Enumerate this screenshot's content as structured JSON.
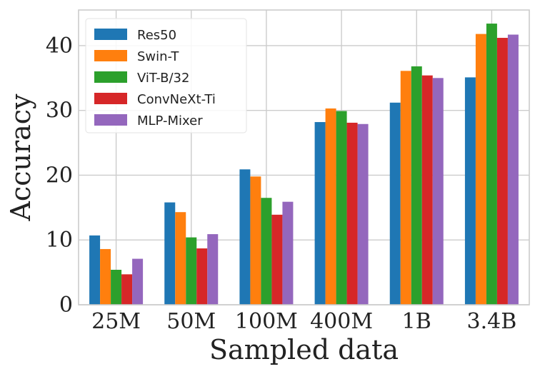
{
  "chart_data": {
    "type": "bar",
    "title": "",
    "xlabel": "Sampled data",
    "ylabel": "Accuracy",
    "categories": [
      "25M",
      "50M",
      "100M",
      "400M",
      "1B",
      "3.4B"
    ],
    "ylim": [
      0,
      45.5
    ],
    "yticks": [
      "0",
      "10",
      "20",
      "30",
      "40"
    ],
    "grid": true,
    "legend_position": "top-left",
    "series": [
      {
        "name": "Res50",
        "color": "#1f77b4",
        "values": [
          10.7,
          15.8,
          20.9,
          28.2,
          31.2,
          35.1
        ]
      },
      {
        "name": "Swin-T",
        "color": "#ff7f0e",
        "values": [
          8.6,
          14.3,
          19.8,
          30.3,
          36.1,
          41.8
        ]
      },
      {
        "name": "ViT-B/32",
        "color": "#2ca02c",
        "values": [
          5.4,
          10.4,
          16.5,
          29.9,
          36.8,
          43.4
        ]
      },
      {
        "name": "ConvNeXt-Ti",
        "color": "#d62728",
        "values": [
          4.7,
          8.7,
          13.9,
          28.1,
          35.4,
          41.2
        ]
      },
      {
        "name": "MLP-Mixer",
        "color": "#9467bd",
        "values": [
          7.1,
          10.9,
          15.9,
          27.9,
          35.0,
          41.7
        ]
      }
    ]
  }
}
